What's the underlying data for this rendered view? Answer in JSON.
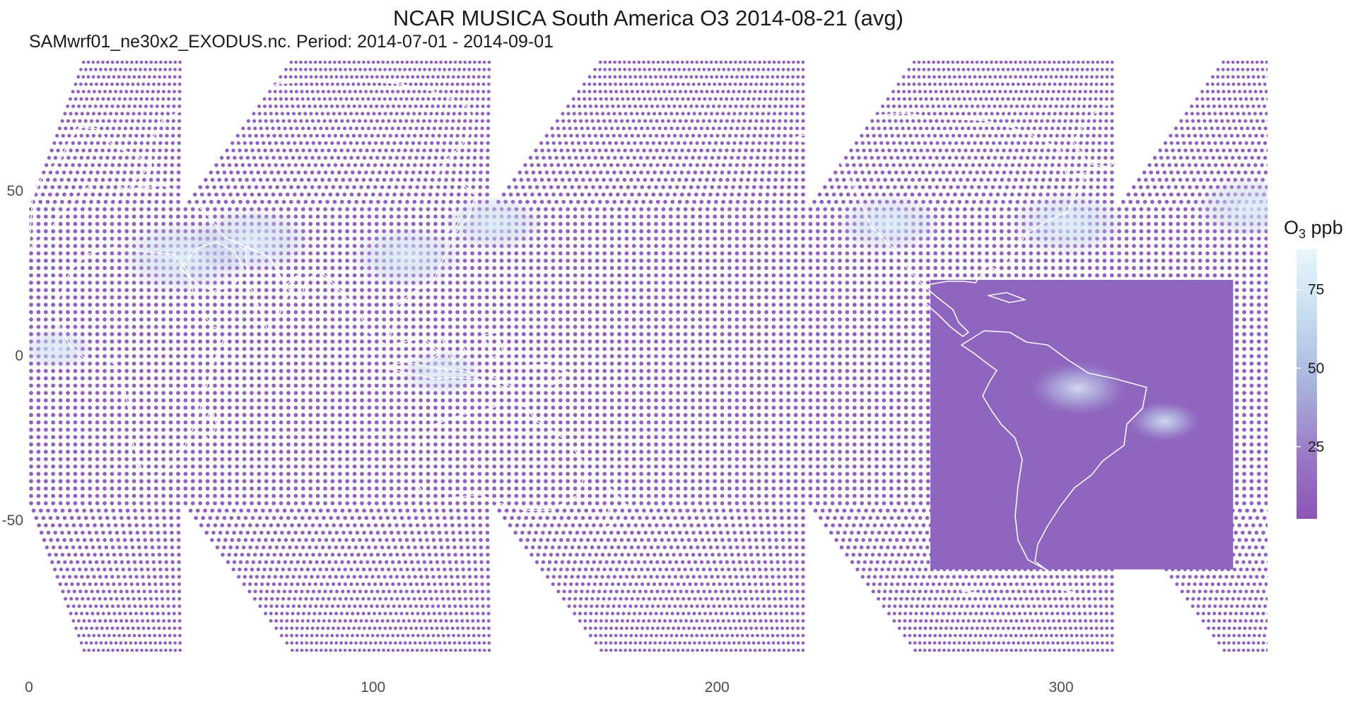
{
  "chart_data": {
    "type": "scatter",
    "title": "NCAR MUSICA South America O3 2014-08-21 (avg)",
    "subtitle": "SAMwrf01_ne30x2_EXODUS.nc. Period: 2014-07-01 - 2014-09-01",
    "xlim": [
      0,
      360
    ],
    "ylim": [
      -90,
      90
    ],
    "x_ticks": [
      0,
      100,
      200,
      300
    ],
    "y_ticks": [
      50,
      0,
      -50
    ],
    "x_tick_labels": [
      "0",
      "100",
      "200",
      "300"
    ],
    "y_tick_labels": [
      "50",
      "0",
      "-50"
    ],
    "grid": false,
    "point_color": "#8f62bd",
    "coastline_color": "#ffffff",
    "colorbar": {
      "title_main": "O",
      "title_sub": "3",
      "title_unit": " ppb",
      "range": [
        2,
        88
      ],
      "ticks": [
        25,
        50,
        75
      ],
      "tick_labels": [
        "25",
        "50",
        "75"
      ],
      "colors": [
        "#8a55b4",
        "#9b7cc6",
        "#a8b4dc",
        "#c6dcef",
        "#eaf6fb"
      ],
      "placement": "right"
    },
    "refined_region": {
      "name": "South America",
      "lon_range": [
        262,
        350
      ],
      "lat_range": [
        -65,
        23
      ]
    },
    "ozone_highlights": [
      {
        "lon": 45,
        "lat": 30,
        "value": 80
      },
      {
        "lon": 65,
        "lat": 35,
        "value": 75
      },
      {
        "lon": 110,
        "lat": 30,
        "value": 70
      },
      {
        "lon": 135,
        "lat": 40,
        "value": 65
      },
      {
        "lon": 250,
        "lat": 40,
        "value": 68
      },
      {
        "lon": 302,
        "lat": 40,
        "value": 72
      },
      {
        "lon": 355,
        "lat": 45,
        "value": 70
      },
      {
        "lon": 120,
        "lat": -5,
        "value": 55
      },
      {
        "lon": 8,
        "lat": 2,
        "value": 50
      },
      {
        "lon": 330,
        "lat": -20,
        "value": 48
      },
      {
        "lon": 305,
        "lat": -10,
        "value": 60
      }
    ]
  }
}
